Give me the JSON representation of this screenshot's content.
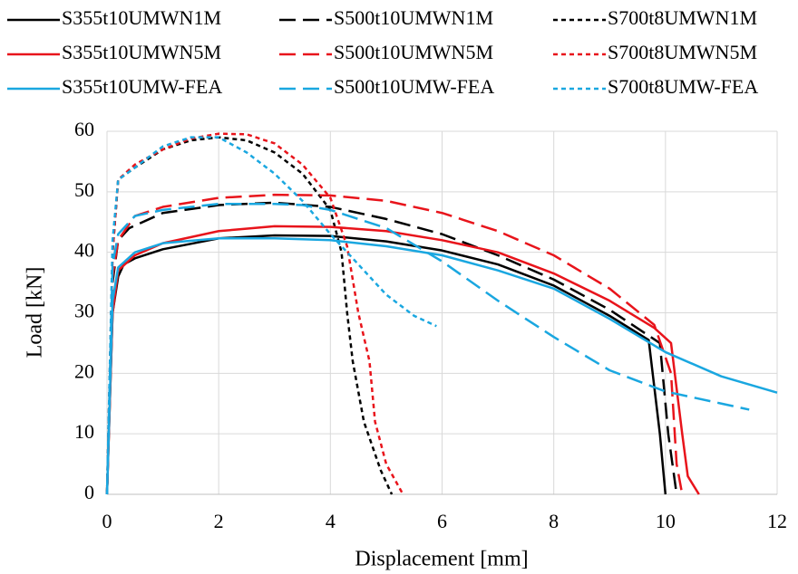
{
  "chart_data": {
    "type": "line",
    "xlabel": "Displacement [mm]",
    "ylabel": "Load [kN]",
    "xlim": [
      0,
      12
    ],
    "xticks": [
      0,
      2,
      4,
      6,
      8,
      10,
      12
    ],
    "ylim": [
      0,
      60
    ],
    "yticks": [
      0,
      10,
      20,
      30,
      40,
      50,
      60
    ],
    "grid": true,
    "legend": "top",
    "series": [
      {
        "name": "S355t10UMWN1M",
        "color": "#000000",
        "dash": "solid",
        "x": [
          0,
          0.1,
          0.2,
          0.3,
          0.5,
          1,
          2,
          3,
          4,
          5,
          6,
          7,
          8,
          9,
          9.7,
          9.9,
          10
        ],
        "values": [
          0,
          30,
          36,
          38,
          39,
          40.5,
          42.3,
          42.8,
          42.7,
          41.8,
          40.3,
          38,
          34.5,
          29.5,
          25.5,
          10,
          0
        ]
      },
      {
        "name": "S500t10UMWN1M",
        "color": "#000000",
        "dash": "long",
        "x": [
          0,
          0.1,
          0.2,
          0.4,
          1,
          2,
          3,
          4,
          5,
          6,
          7,
          8,
          9,
          9.9,
          10.05,
          10.2
        ],
        "values": [
          0,
          35,
          42,
          44,
          46.5,
          47.8,
          48.2,
          47.5,
          45.5,
          43,
          39.5,
          35.5,
          30.5,
          25,
          10,
          0
        ]
      },
      {
        "name": "S700t8UMWN1M",
        "color": "#000000",
        "dash": "short",
        "x": [
          0,
          0.1,
          0.2,
          0.5,
          1,
          1.5,
          2,
          2.5,
          3,
          3.5,
          4,
          4.2,
          4.3,
          4.4,
          4.6,
          4.9,
          5.1
        ],
        "values": [
          0,
          40,
          52,
          54,
          57,
          58.5,
          59,
          58.5,
          56.5,
          53,
          47,
          40,
          30,
          22,
          12,
          4,
          0
        ]
      },
      {
        "name": "S355t10UMWN5M",
        "color": "#e8141b",
        "dash": "solid",
        "x": [
          0,
          0.1,
          0.2,
          0.5,
          1,
          2,
          3,
          4,
          5,
          6,
          7,
          8,
          9,
          9.8,
          10.1,
          10.3,
          10.4,
          10.6
        ],
        "values": [
          0,
          30,
          37,
          39.5,
          41.5,
          43.5,
          44.3,
          44.2,
          43.5,
          42,
          40,
          36.5,
          32,
          27.5,
          25,
          10,
          3,
          0
        ]
      },
      {
        "name": "S500t10UMWN5M",
        "color": "#e8141b",
        "dash": "long",
        "x": [
          0,
          0.1,
          0.2,
          0.5,
          1,
          2,
          3,
          4,
          5,
          6,
          7,
          8,
          9,
          9.8,
          10.1,
          10.2,
          10.3
        ],
        "values": [
          0,
          36,
          42,
          46,
          47.5,
          49,
          49.5,
          49.4,
          48.5,
          46.5,
          43.5,
          39.5,
          34,
          28,
          20,
          5,
          0
        ]
      },
      {
        "name": "S700t8UMWN5M",
        "color": "#e8141b",
        "dash": "short",
        "x": [
          0,
          0.1,
          0.2,
          0.5,
          1,
          1.5,
          2,
          2.5,
          3,
          3.5,
          4,
          4.3,
          4.5,
          4.7,
          4.8,
          5,
          5.3
        ],
        "values": [
          0,
          40,
          52,
          54.5,
          57,
          58.8,
          59.6,
          59.5,
          58,
          54.5,
          49,
          41,
          30,
          22,
          12,
          5,
          0
        ]
      },
      {
        "name": "S355t10UMW-FEA",
        "color": "#1aa7e0",
        "dash": "solid",
        "x": [
          0,
          0.1,
          0.2,
          0.5,
          1,
          2,
          3,
          4,
          5,
          6,
          7,
          8,
          9,
          10,
          11,
          12
        ],
        "values": [
          0,
          32,
          37.5,
          40,
          41.5,
          42.3,
          42.3,
          42,
          41,
          39.5,
          37,
          34,
          29,
          23.5,
          19.5,
          16.8
        ]
      },
      {
        "name": "S500t10UMW-FEA",
        "color": "#1aa7e0",
        "dash": "long",
        "x": [
          0,
          0.1,
          0.2,
          0.5,
          1,
          2,
          3,
          3.5,
          4,
          5,
          6,
          7,
          8,
          9,
          10,
          11,
          11.5
        ],
        "values": [
          0,
          38,
          43,
          46,
          47,
          48,
          48,
          47.8,
          47,
          44,
          38.5,
          32,
          26,
          20.5,
          17,
          15,
          14
        ]
      },
      {
        "name": "S700t8UMW-FEA",
        "color": "#1aa7e0",
        "dash": "short",
        "x": [
          0,
          0.1,
          0.2,
          0.5,
          1,
          1.5,
          2,
          2.5,
          3,
          3.5,
          4,
          4.5,
          5,
          5.5,
          5.9
        ],
        "values": [
          0,
          42,
          52,
          54,
          57.5,
          59,
          59,
          56.5,
          53,
          48.5,
          43,
          38,
          33,
          29.5,
          27.8
        ]
      }
    ]
  }
}
